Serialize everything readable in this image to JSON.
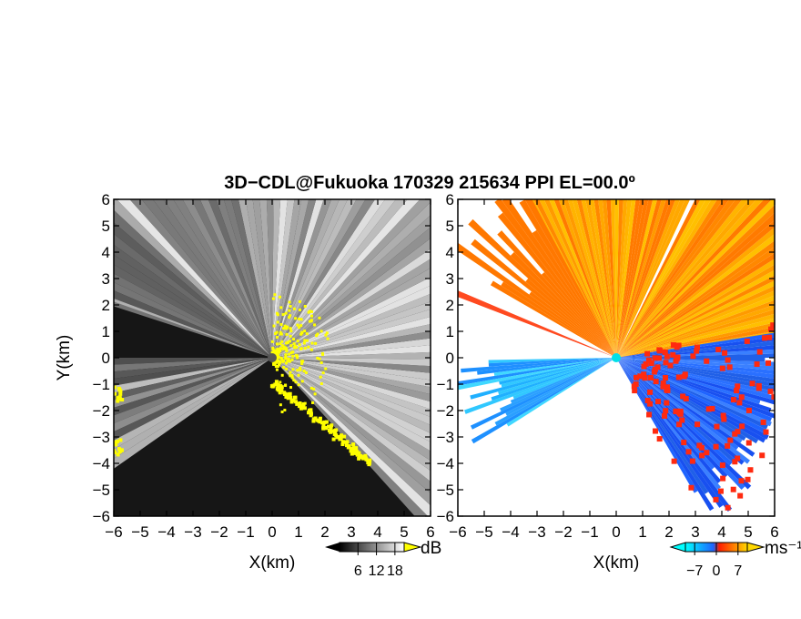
{
  "figure": {
    "title": "3D−CDL@Fukuoka 170329 215634 PPI EL=00.0º"
  },
  "chart_data": [
    {
      "type": "heatmap",
      "panel": "left",
      "quantity": "SNR",
      "xlabel": "X(km)",
      "ylabel": "Y(km)",
      "xlim": [
        -6,
        6
      ],
      "ylim": [
        -6,
        6
      ],
      "xticks": [
        "−6",
        "−5",
        "−4",
        "−3",
        "−2",
        "−1",
        "0",
        "1",
        "2",
        "3",
        "4",
        "5",
        "6"
      ],
      "yticks": [
        "6",
        "5",
        "4",
        "3",
        "2",
        "1",
        "0",
        "−1",
        "−2",
        "−3",
        "−4",
        "−5",
        "−6"
      ],
      "colorbar": {
        "unit": "dB",
        "ticks": [
          "6",
          "12",
          "18"
        ],
        "tick_values": [
          6,
          12,
          18
        ],
        "range": [
          0,
          21
        ],
        "colors": [
          "#000000",
          "#ffffff"
        ],
        "extend_high": "#ffff00"
      },
      "background": "#161616",
      "highlight_color": "#ffff00"
    },
    {
      "type": "heatmap",
      "panel": "right",
      "quantity": "Doppler velocity",
      "xlabel": "X(km)",
      "ylabel": "",
      "xlim": [
        -6,
        6
      ],
      "ylim": [
        -6,
        6
      ],
      "xticks": [
        "−6",
        "−5",
        "−4",
        "−3",
        "−2",
        "−1",
        "0",
        "1",
        "2",
        "3",
        "4",
        "5",
        "6"
      ],
      "yticks": [
        "6",
        "5",
        "4",
        "3",
        "2",
        "1",
        "0",
        "−1",
        "−2",
        "−3",
        "−4",
        "−5",
        "−6"
      ],
      "colorbar": {
        "unit": "ms⁻¹",
        "ticks": [
          "−7",
          "0",
          "7"
        ],
        "tick_values": [
          -7,
          0,
          7
        ],
        "range": [
          -10,
          10
        ],
        "colors": [
          "#00ffff",
          "#1e64ff",
          "#ff2000",
          "#ffd800"
        ]
      },
      "background": "#ffffff"
    }
  ]
}
